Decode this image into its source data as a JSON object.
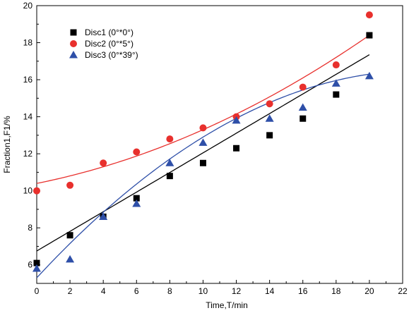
{
  "chart_data": {
    "type": "scatter",
    "xlabel": "Time,T/min",
    "ylabel": "Fraction1,F1/%",
    "xlim": [
      0,
      22
    ],
    "ylim": [
      5,
      20
    ],
    "x_ticks": [
      0,
      2,
      4,
      6,
      8,
      10,
      12,
      14,
      16,
      18,
      20,
      22
    ],
    "y_ticks": [
      6,
      8,
      10,
      12,
      14,
      16,
      18,
      20
    ],
    "legend_position": "top-left",
    "series": [
      {
        "name": "Disc1 (0°*0°)",
        "marker": "square",
        "color": "#000000",
        "x": [
          0,
          2,
          4,
          6,
          8,
          10,
          12,
          14,
          16,
          18,
          20
        ],
        "y": [
          6.1,
          7.6,
          8.6,
          9.6,
          10.8,
          11.5,
          12.3,
          13.0,
          13.9,
          15.2,
          18.4
        ],
        "fit": {
          "type": "linear",
          "a": 6.75,
          "b": 0.53,
          "c": 0,
          "color": "#000000"
        }
      },
      {
        "name": "Disc2 (0°*5°)",
        "marker": "circle",
        "color": "#e8302d",
        "x": [
          0,
          2,
          4,
          6,
          8,
          10,
          12,
          14,
          16,
          18,
          20
        ],
        "y": [
          10.0,
          10.3,
          11.5,
          12.1,
          12.8,
          13.4,
          14.0,
          14.7,
          15.6,
          16.8,
          19.5
        ],
        "fit": {
          "type": "quadratic",
          "a": 10.4,
          "b": 0.18,
          "c": 0.011,
          "color": "#e8302d"
        }
      },
      {
        "name": "Disc3 (0°*39°)",
        "marker": "triangle",
        "color": "#2e4fa8",
        "x": [
          0,
          2,
          4,
          6,
          8,
          10,
          12,
          14,
          16,
          18,
          20
        ],
        "y": [
          5.8,
          6.3,
          8.6,
          9.3,
          11.5,
          12.6,
          13.8,
          13.9,
          14.5,
          15.8,
          16.2
        ],
        "fit": {
          "type": "quadratic",
          "a": 5.3,
          "b": 0.97,
          "c": -0.021,
          "color": "#2e4fa8"
        }
      }
    ]
  }
}
